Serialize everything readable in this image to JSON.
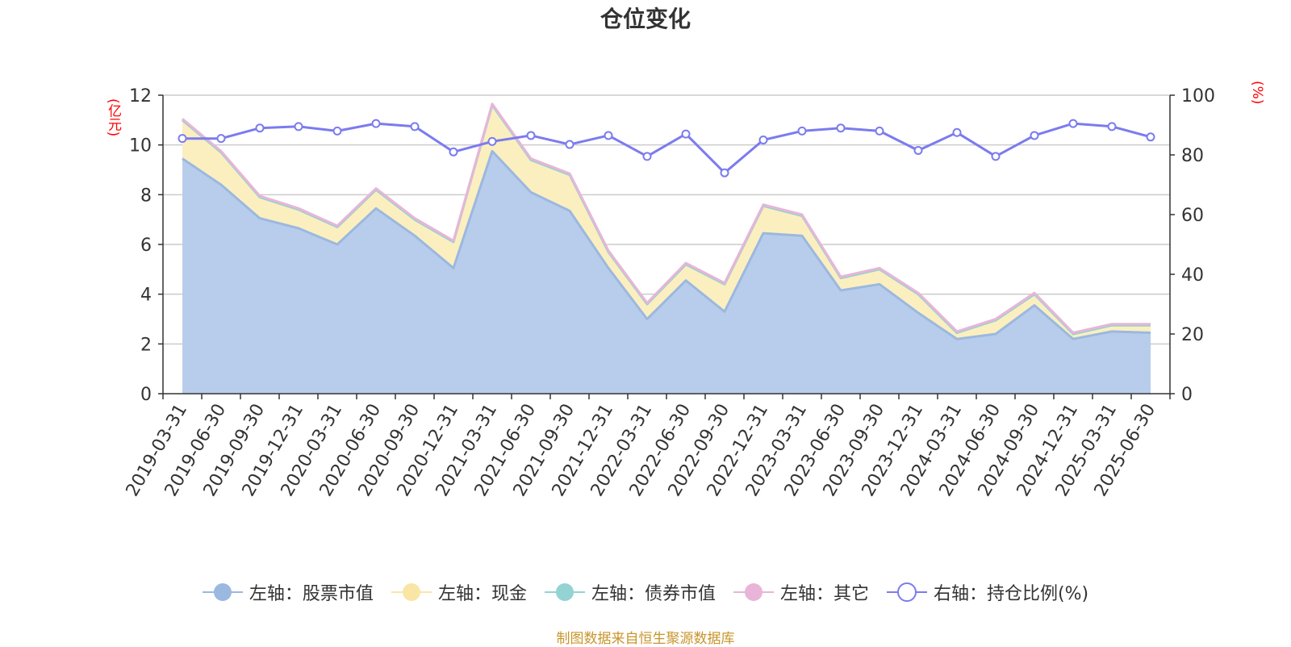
{
  "chart_data": {
    "type": "area",
    "title": "仓位变化",
    "ylabel": "(亿元)",
    "ylabel_right": "(%)",
    "ylim": [
      0,
      12
    ],
    "ylim_right": [
      0,
      100
    ],
    "yticks": [
      0,
      2,
      4,
      6,
      8,
      10,
      12
    ],
    "yticks_right": [
      0,
      20,
      40,
      60,
      80,
      100
    ],
    "grid": true,
    "legend_position": "bottom",
    "categories": [
      "2019-03-31",
      "2019-06-30",
      "2019-09-30",
      "2019-12-31",
      "2020-03-31",
      "2020-06-30",
      "2020-09-30",
      "2020-12-31",
      "2021-03-31",
      "2021-06-30",
      "2021-09-30",
      "2021-12-31",
      "2022-03-31",
      "2022-06-30",
      "2022-09-30",
      "2022-12-31",
      "2023-03-31",
      "2023-06-30",
      "2023-09-30",
      "2023-12-31",
      "2024-03-31",
      "2024-06-30",
      "2024-09-30",
      "2024-12-31",
      "2025-03-31",
      "2025-06-30"
    ],
    "series": [
      {
        "name": "左轴：股票市值",
        "axis": "left",
        "stack": true,
        "color": "#9bb8e0",
        "fill": "#b8cdeb",
        "values": [
          9.45,
          8.4,
          7.05,
          6.65,
          6.0,
          7.45,
          6.35,
          5.05,
          9.75,
          8.1,
          7.35,
          5.05,
          3.0,
          4.55,
          3.3,
          6.45,
          6.35,
          4.15,
          4.4,
          3.25,
          2.2,
          2.4,
          3.55,
          2.2,
          2.5,
          2.45
        ]
      },
      {
        "name": "左轴：现金",
        "axis": "left",
        "stack": true,
        "color": "#f9e6a6",
        "fill": "#fbefbf",
        "values": [
          1.55,
          1.3,
          0.85,
          0.75,
          0.7,
          0.75,
          0.65,
          1.05,
          1.85,
          1.3,
          1.45,
          0.65,
          0.6,
          0.65,
          1.1,
          1.1,
          0.8,
          0.5,
          0.6,
          0.75,
          0.25,
          0.55,
          0.45,
          0.2,
          0.25,
          0.3
        ]
      },
      {
        "name": "左轴：债券市值",
        "axis": "left",
        "stack": true,
        "color": "#93d3d3",
        "fill": "#b9e3e3",
        "values": [
          0,
          0,
          0,
          0,
          0,
          0,
          0,
          0,
          0,
          0,
          0,
          0,
          0,
          0,
          0,
          0,
          0,
          0,
          0,
          0,
          0,
          0,
          0,
          0,
          0,
          0
        ]
      },
      {
        "name": "左轴：其它",
        "axis": "left",
        "stack": true,
        "color": "#e8b5d8",
        "fill": "#f0cde5",
        "values": [
          0.05,
          0.05,
          0.05,
          0.05,
          0.05,
          0.05,
          0.05,
          0.05,
          0.05,
          0.05,
          0.05,
          0.05,
          0.05,
          0.05,
          0.05,
          0.05,
          0.05,
          0.05,
          0.05,
          0.05,
          0.05,
          0.05,
          0.05,
          0.05,
          0.05,
          0.05
        ]
      },
      {
        "name": "右轴：持仓比例(%)",
        "axis": "right",
        "stack": false,
        "color": "#7b7bef",
        "fill": "none",
        "values": [
          85.5,
          85.5,
          89.0,
          89.5,
          88.0,
          90.5,
          89.5,
          81.0,
          84.5,
          86.5,
          83.5,
          86.5,
          79.5,
          87.0,
          74.0,
          85.0,
          88.0,
          89.0,
          88.0,
          81.5,
          87.5,
          79.5,
          86.5,
          90.5,
          89.5,
          86.0
        ]
      }
    ]
  },
  "footer": "制图数据来自恒生聚源数据库"
}
